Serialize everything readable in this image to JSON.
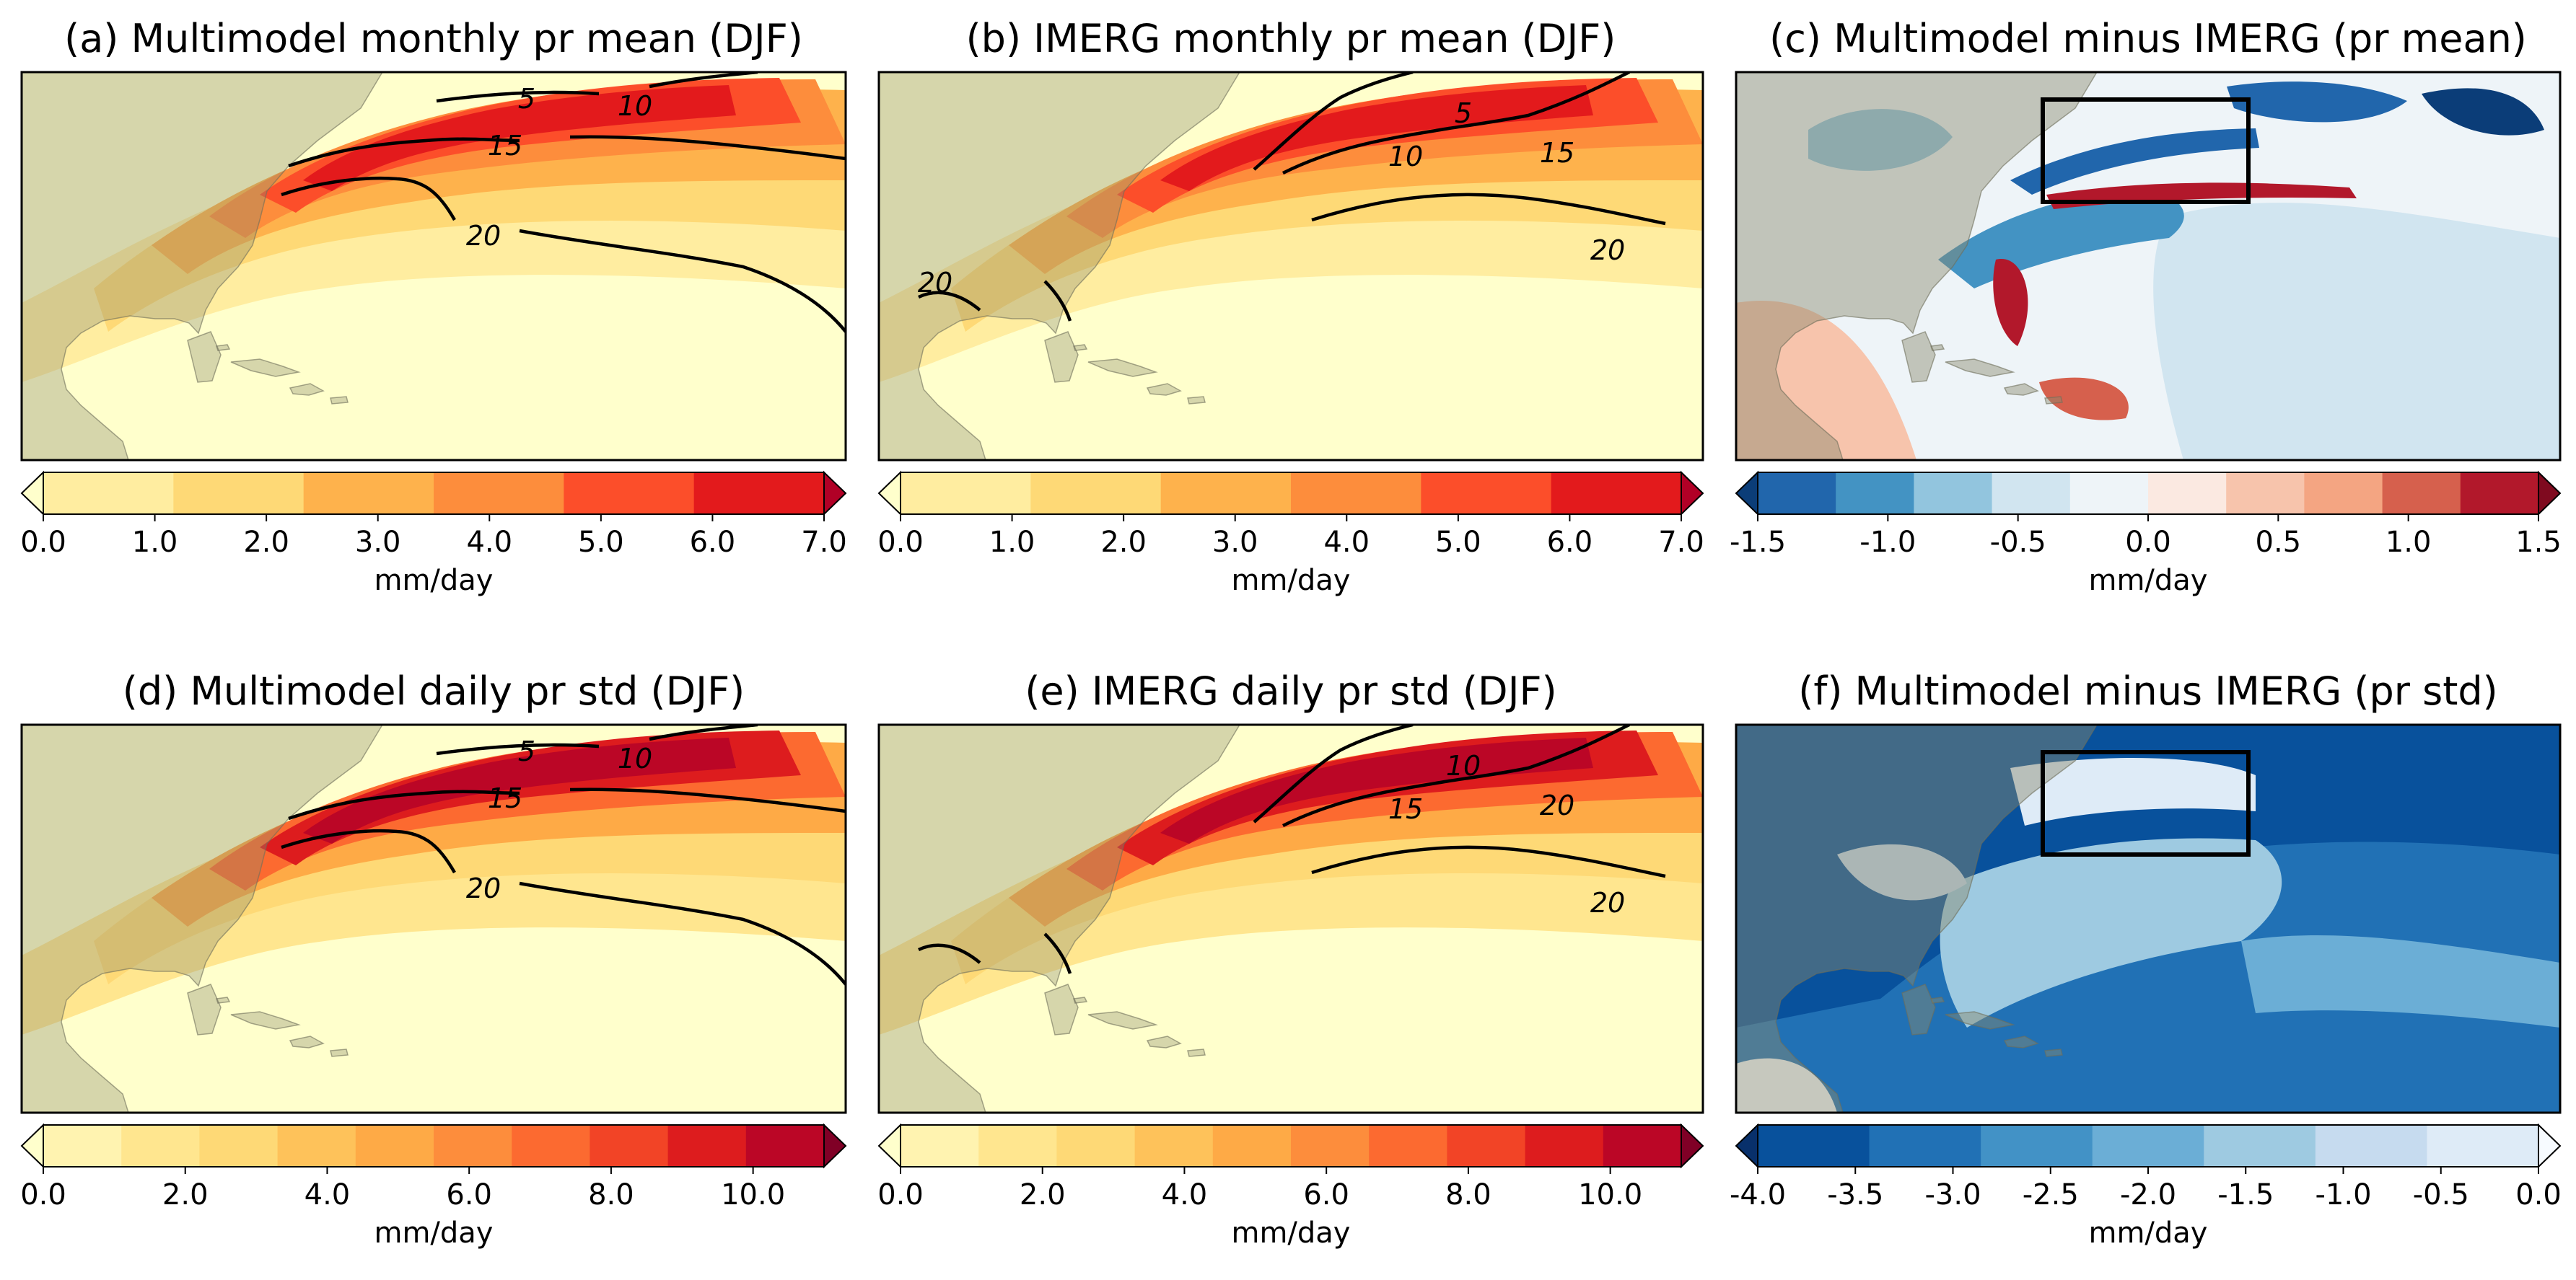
{
  "figure": {
    "colorbar_unit": "mm/day"
  },
  "chart_data": [
    {
      "type": "heatmap",
      "id": "a",
      "title": "(a) Multimodel monthly pr mean (DJF)",
      "colorbar_ticks": [
        "0.0",
        "1.0",
        "2.0",
        "3.0",
        "4.0",
        "5.0",
        "6.0",
        "7.0"
      ],
      "colorbar_range": [
        0,
        7
      ],
      "colorbar_label": "mm/day",
      "colorbar_colors": [
        "#ffffcc",
        "#ffeda0",
        "#fed976",
        "#feb24c",
        "#fd8d3c",
        "#fc4e2a",
        "#e31a1c",
        "#b10026"
      ],
      "contour_labels": [
        "5",
        "10",
        "15",
        "20"
      ],
      "box": false
    },
    {
      "type": "heatmap",
      "id": "b",
      "title": "(b) IMERG monthly pr mean (DJF)",
      "colorbar_ticks": [
        "0.0",
        "1.0",
        "2.0",
        "3.0",
        "4.0",
        "5.0",
        "6.0",
        "7.0"
      ],
      "colorbar_range": [
        0,
        7
      ],
      "colorbar_label": "mm/day",
      "colorbar_colors": [
        "#ffffcc",
        "#ffeda0",
        "#fed976",
        "#feb24c",
        "#fd8d3c",
        "#fc4e2a",
        "#e31a1c",
        "#b10026"
      ],
      "contour_labels": [
        "5",
        "10",
        "15",
        "20",
        "20"
      ],
      "box": false
    },
    {
      "type": "heatmap",
      "id": "c",
      "title": "(c) Multimodel minus IMERG (pr mean)",
      "colorbar_ticks": [
        "-1.5",
        "-1.0",
        "-0.5",
        "0.0",
        "0.5",
        "1.0",
        "1.5"
      ],
      "colorbar_range": [
        -1.5,
        1.5
      ],
      "colorbar_label": "mm/day",
      "colorbar_colors": [
        "#0b3d78",
        "#2166ac",
        "#4393c3",
        "#92c5de",
        "#d1e5f0",
        "#eef4f8",
        "#fbe9e1",
        "#f7c4ac",
        "#f4a582",
        "#d6604d",
        "#b2182b",
        "#7f0a1f"
      ],
      "contour_labels": [],
      "box": true
    },
    {
      "type": "heatmap",
      "id": "d",
      "title": "(d) Multimodel daily pr std (DJF)",
      "colorbar_ticks": [
        "0.0",
        "2.0",
        "4.0",
        "6.0",
        "8.0",
        "10.0"
      ],
      "colorbar_range": [
        0,
        11
      ],
      "colorbar_label": "mm/day",
      "colorbar_colors": [
        "#ffffcc",
        "#fff3b0",
        "#ffe68f",
        "#fed976",
        "#fec25a",
        "#feaa46",
        "#fd8d3c",
        "#fc6a30",
        "#f24426",
        "#dd1c1e",
        "#bb0626",
        "#800026"
      ],
      "contour_labels": [
        "5",
        "10",
        "15",
        "20"
      ],
      "box": false
    },
    {
      "type": "heatmap",
      "id": "e",
      "title": "(e) IMERG daily pr std (DJF)",
      "colorbar_ticks": [
        "0.0",
        "2.0",
        "4.0",
        "6.0",
        "8.0",
        "10.0"
      ],
      "colorbar_range": [
        0,
        11
      ],
      "colorbar_label": "mm/day",
      "colorbar_colors": [
        "#ffffcc",
        "#fff3b0",
        "#ffe68f",
        "#fed976",
        "#fec25a",
        "#feaa46",
        "#fd8d3c",
        "#fc6a30",
        "#f24426",
        "#dd1c1e",
        "#bb0626",
        "#800026"
      ],
      "contour_labels": [
        "10",
        "15",
        "20",
        "20"
      ],
      "box": false
    },
    {
      "type": "heatmap",
      "id": "f",
      "title": "(f) Multimodel minus IMERG (pr std)",
      "colorbar_ticks": [
        "-4.0",
        "-3.5",
        "-3.0",
        "-2.5",
        "-2.0",
        "-1.5",
        "-1.0",
        "-0.5",
        "0.0"
      ],
      "colorbar_range": [
        -4,
        0
      ],
      "colorbar_label": "mm/day",
      "colorbar_colors": [
        "#08306b",
        "#08519c",
        "#2171b5",
        "#4292c6",
        "#6baed6",
        "#9ecae1",
        "#c6dbef",
        "#deebf7",
        "#f7fbff"
      ],
      "contour_labels": [],
      "box": true
    }
  ]
}
